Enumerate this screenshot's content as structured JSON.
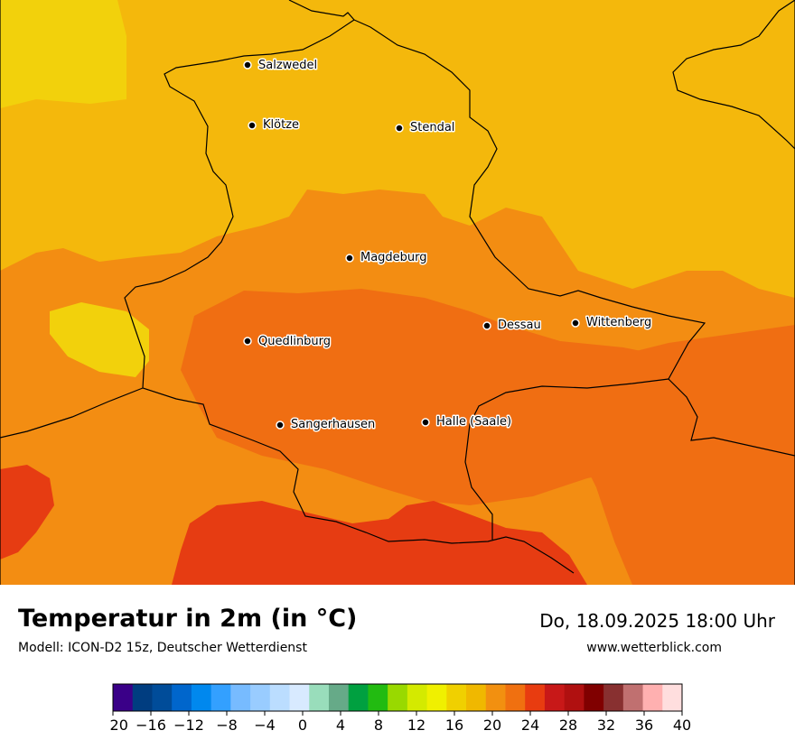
{
  "map": {
    "cities": [
      {
        "name": "Salzwedel"
      },
      {
        "name": "Klötze"
      },
      {
        "name": "Stendal"
      },
      {
        "name": "Magdeburg"
      },
      {
        "name": "Dessau"
      },
      {
        "name": "Wittenberg"
      },
      {
        "name": "Quedlinburg"
      },
      {
        "name": "Sangerhausen"
      },
      {
        "name": "Halle (Saale)"
      }
    ]
  },
  "header": {
    "title": "Temperatur in 2m (in °C)",
    "subtitle": "Modell: ICON-D2 15z, Deutscher Wetterdienst",
    "datetime": "Do, 18.09.2025 18:00 Uhr",
    "website": "www.wetterblick.com"
  },
  "legend": {
    "colors": [
      "#3a0088",
      "#003d80",
      "#004c99",
      "#0066cc",
      "#0088ee",
      "#33a0ff",
      "#77bbff",
      "#99ccff",
      "#bbddff",
      "#d8eaff",
      "#99ddbb",
      "#66aa88",
      "#00a040",
      "#22bb11",
      "#99d900",
      "#d4ea00",
      "#f0f000",
      "#f0d000",
      "#f0b800",
      "#f29010",
      "#f07010",
      "#e83c10",
      "#c81818",
      "#b01010",
      "#800000",
      "#883030",
      "#c07070",
      "#ffb0b0",
      "#ffdede"
    ],
    "ticks": [
      "−20",
      "−16",
      "−12",
      "−8",
      "−4",
      "0",
      "4",
      "8",
      "12",
      "16",
      "20",
      "24",
      "28",
      "32",
      "36",
      "40"
    ]
  }
}
